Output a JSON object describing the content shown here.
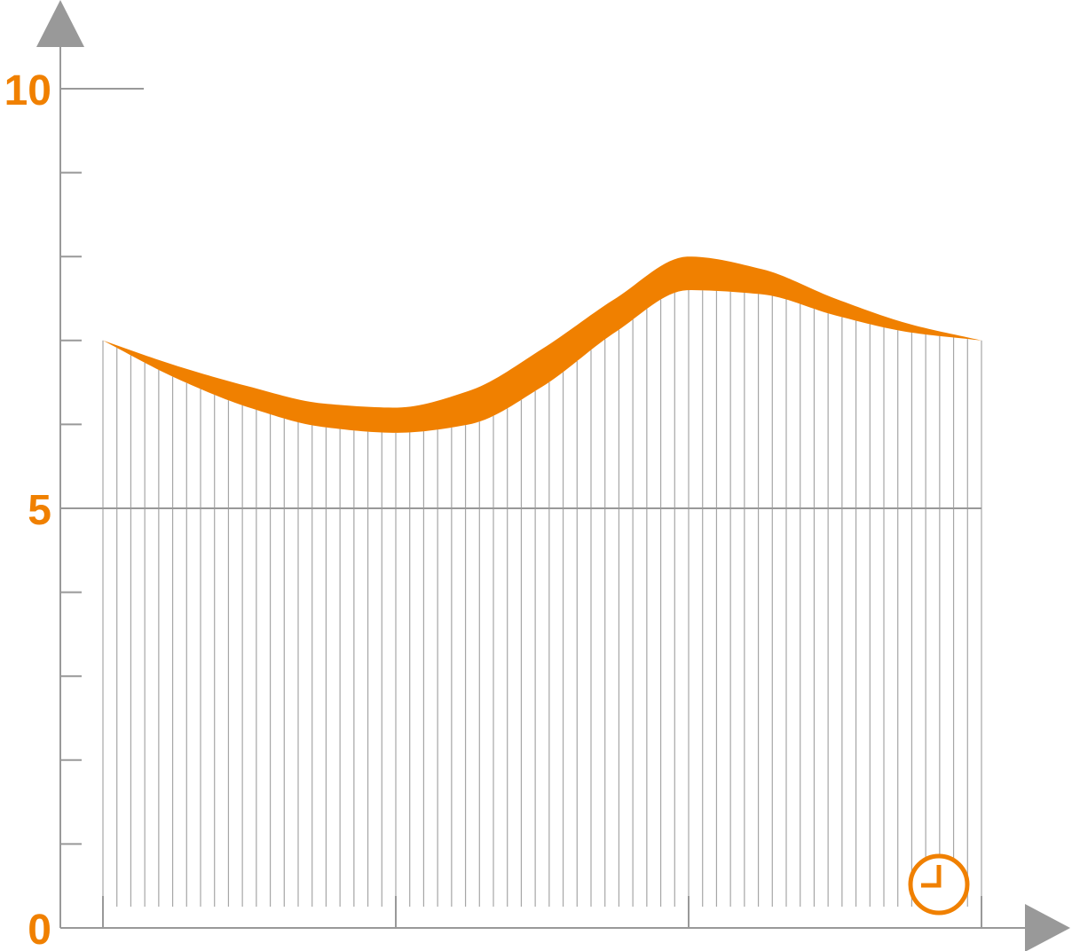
{
  "colors": {
    "accent": "#F08000",
    "axis": "#999999",
    "hatch": "#a6a6a6",
    "background": "#ffffff"
  },
  "icons": {
    "x_axis_end": "clock-icon",
    "y_arrow": "triangle-up-icon",
    "x_arrow": "triangle-right-icon"
  },
  "chart_data": {
    "type": "area",
    "title": "",
    "xlabel": "",
    "ylabel": "",
    "ylim": [
      0,
      10
    ],
    "xlim": [
      0,
      3
    ],
    "y_major_ticks": [
      0,
      5,
      10
    ],
    "y_tick_labels": [
      "0",
      "5",
      "10"
    ],
    "y_minor_ticks": [
      1,
      2,
      3,
      4,
      6,
      7,
      8,
      9
    ],
    "x_major_ticks": [
      0,
      1,
      2,
      3
    ],
    "grid": false,
    "reference_line": 5,
    "series": [
      {
        "x": [
          0,
          0.25,
          0.5,
          0.75,
          1.0,
          1.25,
          1.5,
          1.75,
          2.0,
          2.25,
          2.5,
          2.75,
          3.0
        ],
        "lower": [
          7.0,
          6.55,
          6.2,
          5.97,
          5.9,
          6.0,
          6.45,
          7.1,
          7.6,
          7.55,
          7.3,
          7.1,
          7.0
        ],
        "upper": [
          7.0,
          6.7,
          6.45,
          6.25,
          6.2,
          6.4,
          6.9,
          7.5,
          8.0,
          7.85,
          7.5,
          7.2,
          7.0
        ]
      }
    ],
    "hatch_lines": 64
  }
}
